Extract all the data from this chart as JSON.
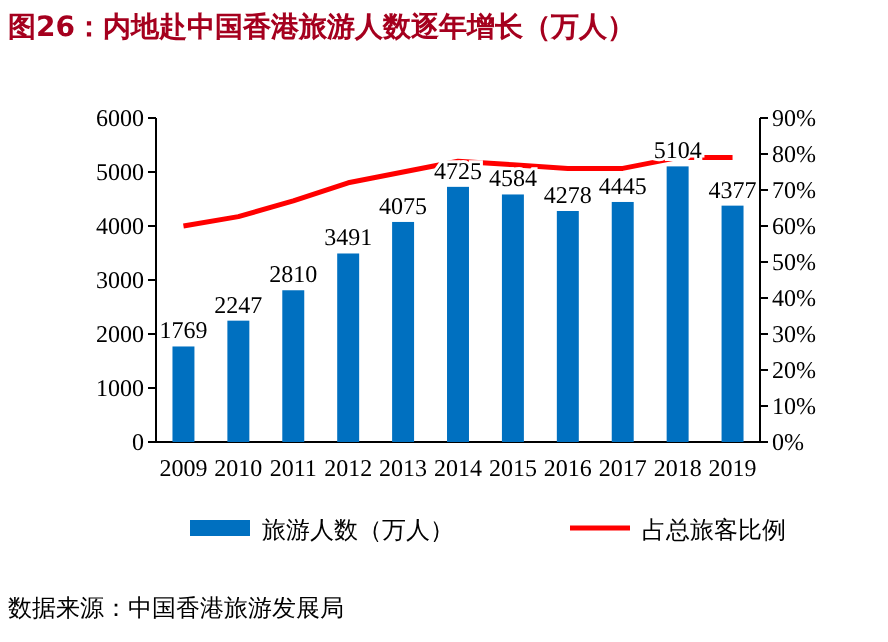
{
  "chart_data": {
    "type": "bar",
    "title": "图26：内地赴中国香港旅游人数逐年增长（万人）",
    "categories": [
      "2009",
      "2010",
      "2011",
      "2012",
      "2013",
      "2014",
      "2015",
      "2016",
      "2017",
      "2018",
      "2019"
    ],
    "series": [
      {
        "name": "旅游人数（万人）",
        "color": "#0070c0",
        "values": [
          1769,
          2247,
          2810,
          3491,
          4075,
          4725,
          4584,
          4278,
          4445,
          5104,
          4377
        ],
        "value_labels": [
          "1769",
          "2247",
          "2810",
          "3491",
          "4075",
          "4725",
          "4584",
          "4278",
          "4445",
          "5104",
          "4377"
        ]
      },
      {
        "name": "占总旅客比例",
        "type": "line",
        "axis": "y2",
        "color": "#ff0000",
        "values": [
          60,
          62.6,
          67,
          72,
          75,
          78,
          77,
          76,
          76,
          79,
          79
        ]
      }
    ],
    "ylim": [
      0,
      6000
    ],
    "yticks": [
      0,
      1000,
      2000,
      3000,
      4000,
      5000,
      6000
    ],
    "y2lim": [
      0,
      90
    ],
    "y2ticks": [
      {
        "value": 0,
        "label": "0%"
      },
      {
        "value": 10,
        "label": "10%"
      },
      {
        "value": 20,
        "label": "20%"
      },
      {
        "value": 30,
        "label": "30%"
      },
      {
        "value": 40,
        "label": "40%"
      },
      {
        "value": 50,
        "label": "50%"
      },
      {
        "value": 60,
        "label": "60%"
      },
      {
        "value": 70,
        "label": "70%"
      },
      {
        "value": 80,
        "label": "80%"
      },
      {
        "value": 90,
        "label": "90%"
      }
    ],
    "legend": "bottom",
    "marker": "none",
    "annotations": [
      "数据来源：中国香港旅游发展局"
    ]
  }
}
